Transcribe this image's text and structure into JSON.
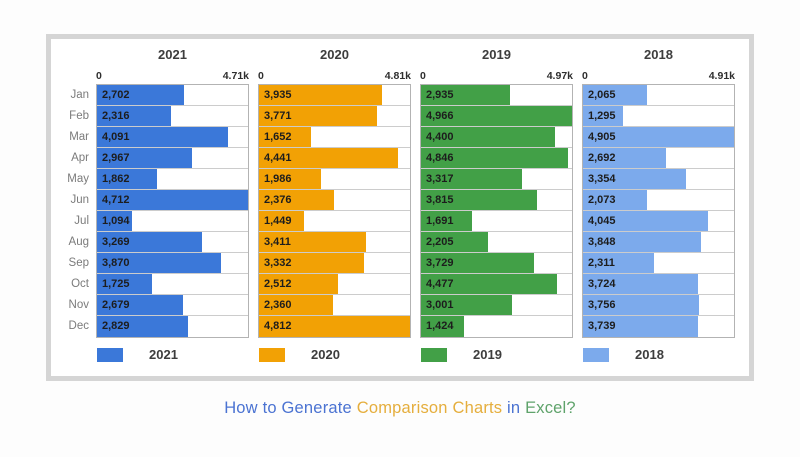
{
  "page": {
    "title_parts": [
      {
        "text": "How to Generate ",
        "color": "#4b73d2"
      },
      {
        "text": "Comparison Charts ",
        "color": "#e5ae3d"
      },
      {
        "text": "in ",
        "color": "#4b73d2"
      },
      {
        "text": "Excel?",
        "color": "#5fa36b"
      }
    ]
  },
  "chart_data": {
    "type": "bar",
    "orientation": "horizontal",
    "grid": false,
    "legend_position": "bottom",
    "categories": [
      "Jan",
      "Feb",
      "Mar",
      "Apr",
      "May",
      "Jun",
      "Jul",
      "Aug",
      "Sep",
      "Oct",
      "Nov",
      "Dec"
    ],
    "panels": [
      {
        "name": "2021",
        "color": "#3b78d9",
        "axis_min_label": "0",
        "axis_max_label": "4.71k",
        "axis_max": 4712,
        "values": [
          2702,
          2316,
          4091,
          2967,
          1862,
          4712,
          1094,
          3269,
          3870,
          1725,
          2679,
          2829
        ],
        "labels": [
          "2,702",
          "2,316",
          "4,091",
          "2,967",
          "1,862",
          "4,712",
          "1,094",
          "3,269",
          "3,870",
          "1,725",
          "2,679",
          "2,829"
        ]
      },
      {
        "name": "2020",
        "color": "#f2a105",
        "axis_min_label": "0",
        "axis_max_label": "4.81k",
        "axis_max": 4812,
        "values": [
          3935,
          3771,
          1652,
          4441,
          1986,
          2376,
          1449,
          3411,
          3332,
          2512,
          2360,
          4812
        ],
        "labels": [
          "3,935",
          "3,771",
          "1,652",
          "4,441",
          "1,986",
          "2,376",
          "1,449",
          "3,411",
          "3,332",
          "2,512",
          "2,360",
          "4,812"
        ]
      },
      {
        "name": "2019",
        "color": "#42a047",
        "axis_min_label": "0",
        "axis_max_label": "4.97k",
        "axis_max": 4966,
        "values": [
          2935,
          4966,
          4400,
          4846,
          3317,
          3815,
          1691,
          2205,
          3729,
          4477,
          3001,
          1424
        ],
        "labels": [
          "2,935",
          "4,966",
          "4,400",
          "4,846",
          "3,317",
          "3,815",
          "1,691",
          "2,205",
          "3,729",
          "4,477",
          "3,001",
          "1,424"
        ]
      },
      {
        "name": "2018",
        "color": "#7caaec",
        "axis_min_label": "0",
        "axis_max_label": "4.91k",
        "axis_max": 4905,
        "values": [
          2065,
          1295,
          4905,
          2692,
          3354,
          2073,
          4045,
          3848,
          2311,
          3724,
          3756,
          3739
        ],
        "labels": [
          "2,065",
          "1,295",
          "4,905",
          "2,692",
          "3,354",
          "2,073",
          "4,045",
          "3,848",
          "2,311",
          "3,724",
          "3,756",
          "3,739"
        ]
      }
    ]
  }
}
